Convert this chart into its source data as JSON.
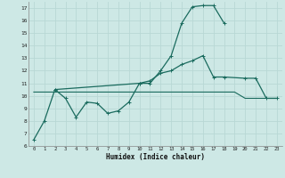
{
  "xlabel": "Humidex (Indice chaleur)",
  "bg_color": "#cde8e5",
  "grid_color": "#b8d8d5",
  "line_color": "#1a6b5e",
  "line1_x": [
    0,
    1,
    2,
    3,
    4,
    5,
    6,
    7,
    8,
    9,
    10,
    11,
    12,
    13,
    14,
    15,
    16,
    17,
    18
  ],
  "line1_y": [
    6.5,
    8.0,
    10.5,
    9.8,
    8.3,
    9.5,
    9.4,
    8.6,
    8.8,
    9.5,
    11.0,
    11.0,
    12.0,
    13.2,
    15.8,
    17.1,
    17.2,
    17.2,
    15.8
  ],
  "line2_x": [
    0,
    1,
    2,
    3,
    4,
    5,
    6,
    7,
    8,
    9,
    10,
    11,
    12,
    13,
    14,
    15,
    16,
    17,
    18,
    19,
    20,
    21,
    22,
    23
  ],
  "line2_y": [
    10.3,
    10.3,
    10.3,
    10.3,
    10.3,
    10.3,
    10.3,
    10.3,
    10.3,
    10.3,
    10.3,
    10.3,
    10.3,
    10.3,
    10.3,
    10.3,
    10.3,
    10.3,
    10.3,
    10.3,
    9.8,
    9.8,
    9.8,
    9.8
  ],
  "line3_x": [
    2,
    10,
    11,
    12,
    13,
    14,
    15,
    16,
    17,
    18,
    20,
    21,
    22,
    23
  ],
  "line3_y": [
    10.5,
    11.0,
    11.2,
    11.8,
    12.0,
    12.5,
    12.8,
    13.2,
    11.5,
    11.5,
    11.4,
    11.4,
    9.8,
    9.8
  ],
  "ylim": [
    6,
    17.5
  ],
  "xlim": [
    -0.5,
    23.5
  ],
  "yticks": [
    6,
    7,
    8,
    9,
    10,
    11,
    12,
    13,
    14,
    15,
    16,
    17
  ],
  "xticks": [
    0,
    1,
    2,
    3,
    4,
    5,
    6,
    7,
    8,
    9,
    10,
    11,
    12,
    13,
    14,
    15,
    16,
    17,
    18,
    19,
    20,
    21,
    22,
    23
  ]
}
